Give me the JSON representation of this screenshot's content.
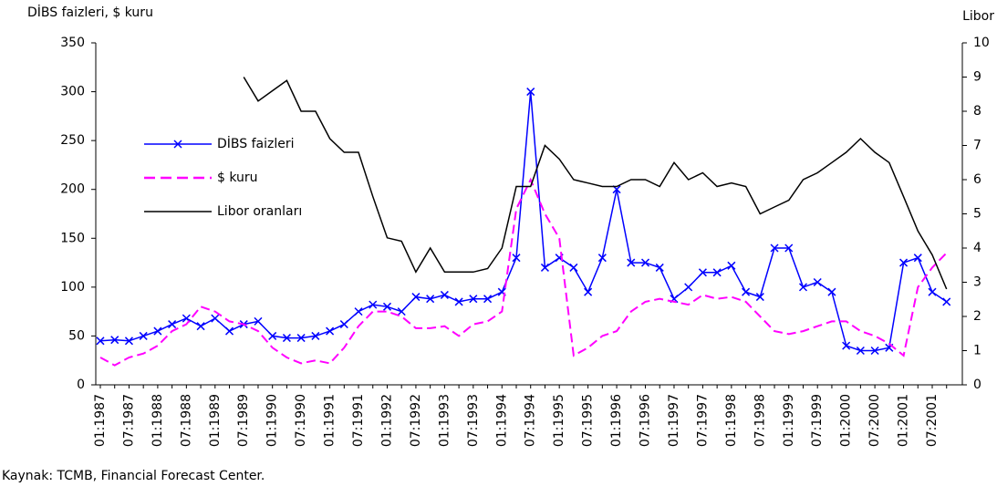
{
  "chart_data": {
    "type": "line",
    "y_label": "DİBS faizleri, $ kuru",
    "y2_label": "Libor",
    "source": "Kaynak: TCMB, Financial Forecast Center.",
    "categories": [
      "01:1987",
      null,
      "07:1987",
      null,
      "01:1988",
      null,
      "07:1988",
      null,
      "01:1989",
      null,
      "07:1989",
      null,
      "01:1990",
      null,
      "07:1990",
      null,
      "01:1991",
      null,
      "07:1991",
      null,
      "01:1992",
      null,
      "07:1992",
      null,
      "01:1993",
      null,
      "07:1993",
      null,
      "01:1994",
      null,
      "07:1994",
      null,
      "01:1995",
      null,
      "07:1995",
      null,
      "01:1996",
      null,
      "07:1996",
      null,
      "01:1997",
      null,
      "07:1997",
      null,
      "01:1998",
      null,
      "07:1998",
      null,
      "01:1999",
      null,
      "07:1999",
      null,
      "01:2000",
      null,
      "07:2000",
      null,
      "01:2001",
      null,
      "07:2001",
      null
    ],
    "ylim": [
      0,
      350
    ],
    "yticks": [
      0,
      50,
      100,
      150,
      200,
      250,
      300,
      350
    ],
    "y2lim": [
      0,
      10
    ],
    "y2ticks": [
      0,
      1,
      2,
      3,
      4,
      5,
      6,
      7,
      8,
      9,
      10
    ],
    "series": [
      {
        "name": "DİBS faizleri",
        "color": "#0000ff",
        "marker": "x",
        "values": [
          45,
          46,
          45,
          50,
          55,
          62,
          68,
          60,
          68,
          55,
          62,
          65,
          50,
          48,
          48,
          50,
          55,
          62,
          75,
          82,
          80,
          75,
          90,
          88,
          92,
          85,
          88,
          88,
          95,
          130,
          300,
          120,
          130,
          120,
          95,
          130,
          200,
          125,
          125,
          120,
          88,
          100,
          115,
          115,
          122,
          95,
          90,
          140,
          140,
          100,
          105,
          95,
          40,
          35,
          35,
          38,
          125,
          130,
          95,
          85
        ]
      },
      {
        "name": "$ kuru",
        "color": "#ff00ff",
        "dash": true,
        "values": [
          28,
          20,
          28,
          32,
          40,
          55,
          62,
          80,
          75,
          65,
          62,
          55,
          38,
          28,
          22,
          25,
          22,
          38,
          60,
          75,
          75,
          70,
          58,
          58,
          60,
          50,
          62,
          65,
          75,
          180,
          210,
          175,
          150,
          30,
          38,
          50,
          55,
          75,
          85,
          88,
          85,
          82,
          92,
          88,
          90,
          85,
          70,
          55,
          52,
          55,
          60,
          65,
          65,
          55,
          50,
          42,
          30,
          100,
          120,
          135
        ]
      },
      {
        "name": "Libor oranları",
        "color": "#000000",
        "axis": "y2",
        "values": [
          null,
          null,
          null,
          null,
          null,
          null,
          null,
          null,
          null,
          null,
          9.0,
          8.3,
          8.6,
          8.9,
          8.0,
          8.0,
          7.2,
          6.8,
          6.8,
          5.5,
          4.3,
          4.2,
          3.3,
          4.0,
          3.3,
          3.3,
          3.3,
          3.4,
          4.0,
          5.8,
          5.8,
          7.0,
          6.6,
          6.0,
          5.9,
          5.8,
          5.8,
          6.0,
          6.0,
          5.8,
          6.5,
          6.0,
          6.2,
          5.8,
          5.9,
          5.8,
          5.0,
          5.2,
          5.4,
          6.0,
          6.2,
          6.5,
          6.8,
          7.2,
          6.8,
          6.5,
          5.5,
          4.5,
          3.8,
          2.8
        ]
      }
    ]
  }
}
